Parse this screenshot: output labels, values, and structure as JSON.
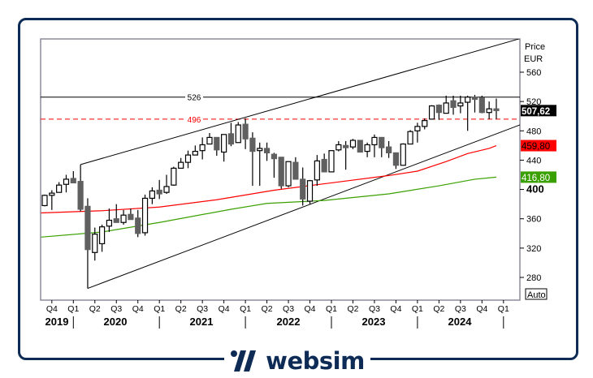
{
  "brand": {
    "name": "websim",
    "color": "#0d2b55"
  },
  "chart_data": {
    "type": "candlestick",
    "y_axis": {
      "title": "Price",
      "unit": "EUR",
      "ticks": [
        280,
        320,
        360,
        400,
        440,
        480,
        520,
        560
      ],
      "range": [
        262,
        585
      ],
      "position": "right",
      "scale_button": "Auto"
    },
    "x_axis": {
      "quarter_labels": [
        "Q4",
        "Q1",
        "Q2",
        "Q3",
        "Q4",
        "Q1",
        "Q2",
        "Q3",
        "Q4",
        "Q1",
        "Q2",
        "Q3",
        "Q4",
        "Q1",
        "Q2",
        "Q3",
        "Q4",
        "Q1",
        "Q2",
        "Q3",
        "Q4",
        "Q1"
      ],
      "quarter_months": [
        "2019-10",
        "2020-01",
        "2020-04",
        "2020-07",
        "2020-10",
        "2021-01",
        "2021-04",
        "2021-07",
        "2021-10",
        "2022-01",
        "2022-04",
        "2022-07",
        "2022-10",
        "2023-01",
        "2023-04",
        "2023-07",
        "2023-10",
        "2024-01",
        "2024-04",
        "2024-07",
        "2024-10",
        "2025-01"
      ],
      "years": [
        "2019",
        "2020",
        "2021",
        "2022",
        "2023",
        "2024"
      ]
    },
    "grid": false,
    "candles_ohlc": [
      [
        "2019-09",
        378,
        393,
        377,
        392
      ],
      [
        "2019-10",
        392,
        399,
        372,
        395
      ],
      [
        "2019-11",
        396,
        410,
        396,
        406
      ],
      [
        "2019-12",
        407,
        420,
        396,
        414
      ],
      [
        "2020-01",
        415,
        425,
        409,
        409
      ],
      [
        "2020-02",
        411,
        434,
        370,
        373
      ],
      [
        "2020-03",
        377,
        388,
        265,
        318
      ],
      [
        "2020-04",
        314,
        348,
        303,
        339
      ],
      [
        "2020-05",
        326,
        352,
        315,
        349
      ],
      [
        "2020-06",
        350,
        374,
        342,
        358
      ],
      [
        "2020-07",
        360,
        380,
        355,
        355
      ],
      [
        "2020-08",
        355,
        372,
        352,
        365
      ],
      [
        "2020-09",
        366,
        374,
        359,
        359
      ],
      [
        "2020-10",
        361,
        372,
        335,
        340
      ],
      [
        "2020-11",
        341,
        393,
        337,
        388
      ],
      [
        "2020-12",
        388,
        403,
        380,
        398
      ],
      [
        "2021-01",
        399,
        413,
        387,
        394
      ],
      [
        "2021-02",
        396,
        420,
        394,
        404
      ],
      [
        "2021-03",
        406,
        431,
        405,
        429
      ],
      [
        "2021-04",
        429,
        443,
        429,
        437
      ],
      [
        "2021-05",
        437,
        453,
        429,
        447
      ],
      [
        "2021-06",
        447,
        460,
        447,
        452
      ],
      [
        "2021-07",
        453,
        471,
        441,
        461
      ],
      [
        "2021-08",
        462,
        477,
        462,
        471
      ],
      [
        "2021-09",
        471,
        471,
        446,
        454
      ],
      [
        "2021-10",
        451,
        475,
        438,
        475
      ],
      [
        "2021-11",
        476,
        491,
        459,
        462
      ],
      [
        "2021-12",
        464,
        492,
        464,
        488
      ],
      [
        "2022-01",
        489,
        497,
        455,
        469
      ],
      [
        "2022-02",
        470,
        478,
        405,
        452
      ],
      [
        "2022-03",
        453,
        464,
        405,
        456
      ],
      [
        "2022-04",
        456,
        464,
        439,
        450
      ],
      [
        "2022-05",
        448,
        450,
        416,
        442
      ],
      [
        "2022-06",
        444,
        444,
        401,
        405
      ],
      [
        "2022-07",
        405,
        438,
        403,
        438
      ],
      [
        "2022-08",
        437,
        444,
        414,
        414
      ],
      [
        "2022-09",
        414,
        430,
        378,
        387
      ],
      [
        "2022-10",
        384,
        413,
        380,
        412
      ],
      [
        "2022-11",
        413,
        447,
        405,
        439
      ],
      [
        "2022-12",
        441,
        449,
        424,
        424
      ],
      [
        "2023-01",
        424,
        453,
        424,
        453
      ],
      [
        "2023-02",
        454,
        466,
        452,
        461
      ],
      [
        "2023-03",
        460,
        466,
        427,
        457
      ],
      [
        "2023-04",
        458,
        469,
        455,
        467
      ],
      [
        "2023-05",
        467,
        467,
        451,
        451
      ],
      [
        "2023-06",
        452,
        464,
        444,
        461
      ],
      [
        "2023-07",
        461,
        475,
        444,
        471
      ],
      [
        "2023-08",
        471,
        471,
        444,
        457
      ],
      [
        "2023-09",
        458,
        466,
        443,
        450
      ],
      [
        "2023-10",
        450,
        450,
        428,
        433
      ],
      [
        "2023-11",
        433,
        463,
        433,
        462
      ],
      [
        "2023-12",
        462,
        481,
        462,
        479
      ],
      [
        "2024-01",
        480,
        491,
        464,
        486
      ],
      [
        "2024-02",
        486,
        497,
        482,
        494
      ],
      [
        "2024-03",
        496,
        515,
        496,
        514
      ],
      [
        "2024-04",
        515,
        516,
        495,
        505
      ],
      [
        "2024-05",
        504,
        528,
        504,
        518
      ],
      [
        "2024-06",
        521,
        528,
        502,
        512
      ],
      [
        "2024-07",
        514,
        528,
        504,
        518
      ],
      [
        "2024-08",
        519,
        528,
        480,
        526
      ],
      [
        "2024-09",
        526,
        529,
        505,
        523
      ],
      [
        "2024-10",
        525,
        528,
        504,
        505
      ],
      [
        "2024-11",
        505,
        520,
        496,
        510
      ],
      [
        "2024-12",
        510,
        524,
        496,
        507.62
      ]
    ],
    "series": [
      {
        "color": "#ff0000",
        "last_label": "459,80",
        "points": [
          [
            "2019-09",
            368
          ],
          [
            "2020-05",
            371
          ],
          [
            "2021-01",
            376
          ],
          [
            "2021-09",
            386
          ],
          [
            "2022-05",
            399
          ],
          [
            "2023-01",
            409
          ],
          [
            "2023-09",
            419
          ],
          [
            "2024-01",
            425
          ],
          [
            "2024-05",
            438
          ],
          [
            "2024-08",
            449
          ],
          [
            "2024-11",
            456
          ],
          [
            "2024-12",
            459.8
          ]
        ]
      },
      {
        "color": "#3aa000",
        "last_label": "416,80",
        "points": [
          [
            "2019-09",
            335
          ],
          [
            "2020-05",
            342
          ],
          [
            "2021-01",
            355
          ],
          [
            "2021-11",
            373
          ],
          [
            "2022-04",
            381
          ],
          [
            "2022-12",
            385
          ],
          [
            "2023-09",
            394
          ],
          [
            "2024-04",
            405
          ],
          [
            "2024-09",
            414
          ],
          [
            "2024-12",
            416.8
          ]
        ]
      }
    ],
    "last_price": {
      "value": 507.62,
      "label": "507,62",
      "color": "#000000"
    },
    "horizontal_lines": [
      {
        "value": 526,
        "label": "526",
        "color": "#000000",
        "style": "solid"
      },
      {
        "value": 496,
        "label": "496",
        "color": "#ff0000",
        "style": "dashed"
      }
    ],
    "trend_lines": [
      {
        "from": [
          "2020-02",
          434
        ],
        "to": [
          "2025-03",
          605
        ],
        "color": "#000000"
      },
      {
        "from": [
          "2020-03",
          265
        ],
        "to": [
          "2025-03",
          487
        ],
        "color": "#000000"
      }
    ],
    "colors": {
      "up_body": "#ffffff",
      "down_body": "#606060",
      "outline": "#000000"
    }
  }
}
